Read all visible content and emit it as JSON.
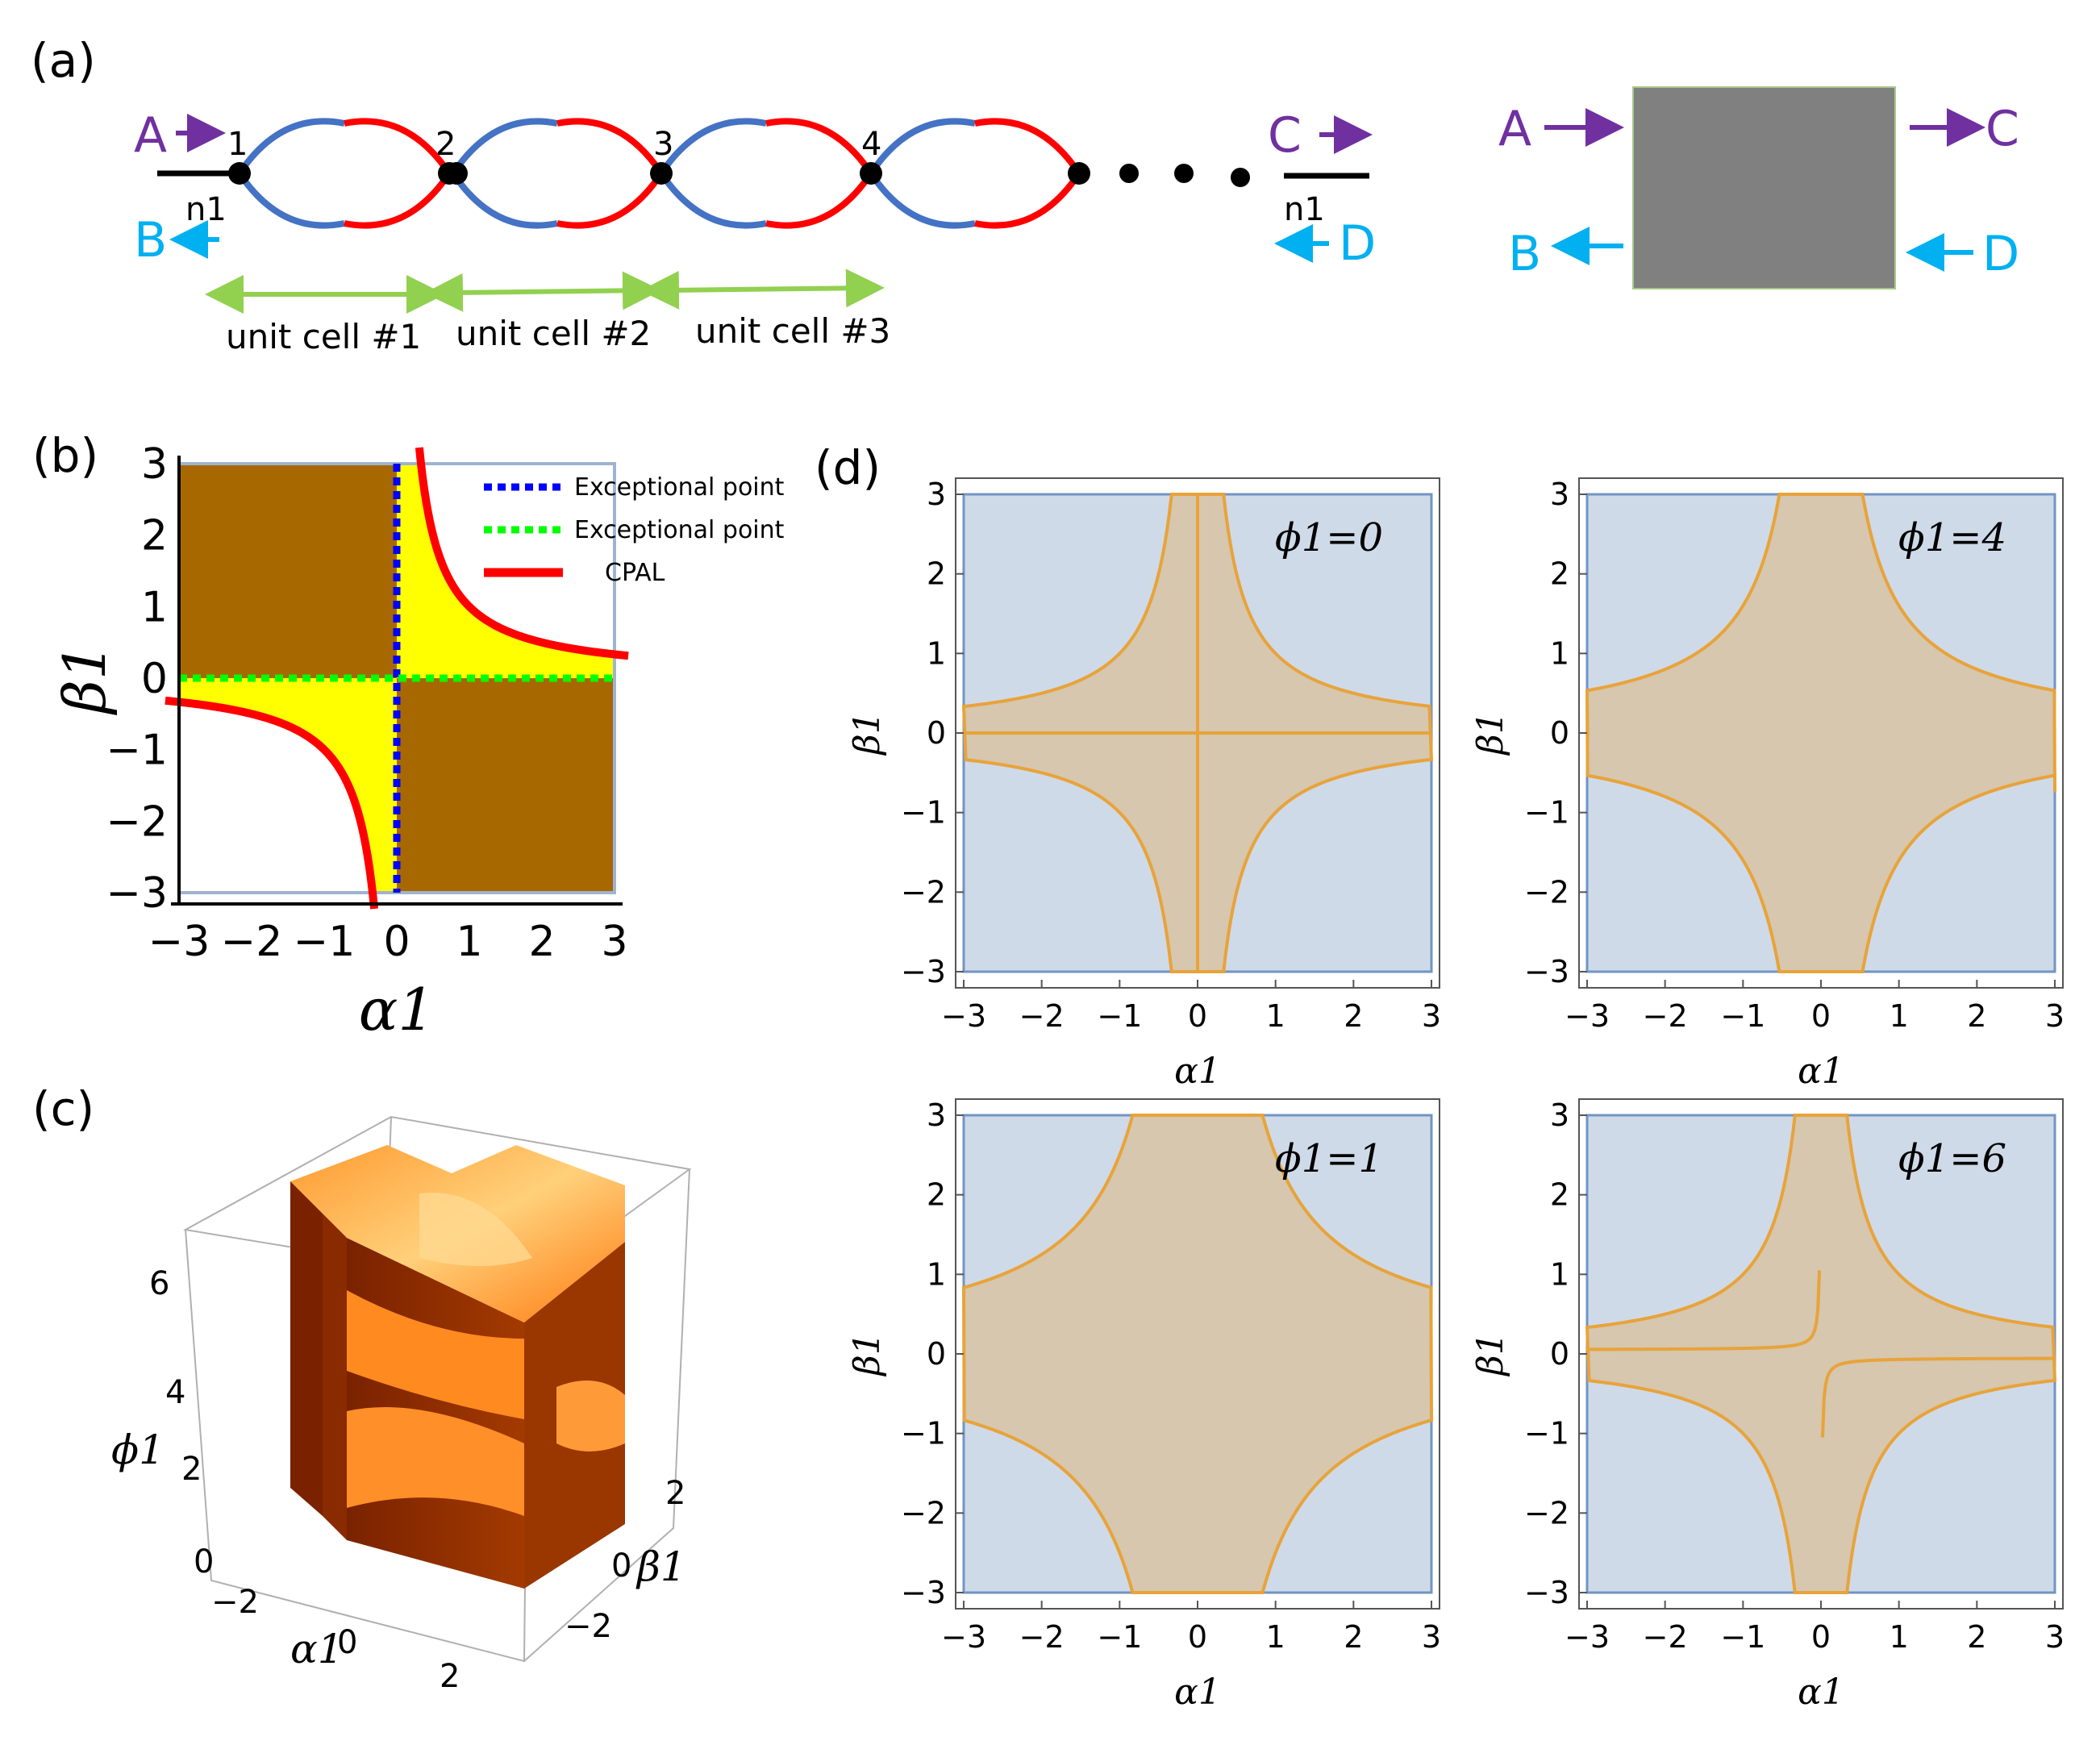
{
  "panel_labels": {
    "a": "(a)",
    "b": "(b)",
    "c": "(c)",
    "d": "(d)"
  },
  "panel_a": {
    "ports": {
      "A": "A",
      "B": "B",
      "C": "C",
      "D": "D"
    },
    "node_labels": [
      "1",
      "2",
      "3",
      "4"
    ],
    "lead_label": "n1",
    "unit_cells": [
      "unit cell #1",
      "unit cell #2",
      "unit cell #3"
    ],
    "colors": {
      "port_in": "#7030a0",
      "port_out": "#00b0f0",
      "arc_blue": "#4472c4",
      "arc_red": "#ff0000",
      "cell_arrow": "#92d050",
      "box": "#808080"
    }
  },
  "chart_data": [
    {
      "id": "b",
      "type": "area",
      "xlabel": "α1",
      "ylabel": "β1",
      "xlim": [
        -3,
        3
      ],
      "ylim": [
        -3,
        3
      ],
      "xticks": [
        "−3",
        "−2",
        "−1",
        "0",
        "1",
        "2",
        "3"
      ],
      "yticks": [
        "3",
        "2",
        "1",
        "0",
        "−1",
        "−2",
        "−3"
      ],
      "legend": {
        "placement": "right",
        "entries": [
          "Exceptional point",
          "Exceptional point",
          "CPAL"
        ]
      },
      "series": [
        {
          "name": "Exceptional point",
          "kind": "vertical line",
          "x": 0,
          "color": "#0000ff"
        },
        {
          "name": "Exceptional point",
          "kind": "horizontal line",
          "y": 0,
          "color": "#00ff00"
        },
        {
          "name": "CPAL",
          "kind": "curve",
          "equation": "α1·β1 = 1",
          "color": "#ff0000"
        }
      ],
      "regions": [
        {
          "area": "α1<0, β1>0 and α1>0, β1<0",
          "color": "#a86800"
        },
        {
          "area": "between axes and CPAL curve",
          "color": "#ffff00"
        }
      ]
    },
    {
      "id": "c",
      "type": "3d-surface",
      "xlabel": "α1",
      "ylabel": "β1",
      "zlabel": "ϕ1",
      "xticks": [
        "−2",
        "0",
        "2"
      ],
      "yticks": [
        "2",
        "0",
        "−2"
      ],
      "zticks": [
        "6",
        "4",
        "2",
        "0"
      ],
      "color": "#ff7a10"
    },
    {
      "id": "d",
      "type": "area",
      "xlabel": "α1",
      "ylabel": "β1",
      "xlim": [
        -3,
        3
      ],
      "ylim": [
        -3,
        3
      ],
      "xticks": [
        "−3",
        "−2",
        "−1",
        "0",
        "1",
        "2",
        "3"
      ],
      "yticks": [
        "3",
        "2",
        "1",
        "0",
        "−1",
        "−2",
        "−3"
      ],
      "colors": {
        "region_a": "#cfdae8",
        "region_b": "#d6c7ae",
        "boundary": "#e8a33a",
        "frame_blue": "#7294c4"
      },
      "subplots": [
        {
          "label": "ϕ1=0",
          "phi": 0
        },
        {
          "label": "ϕ1=4",
          "phi": 4
        },
        {
          "label": "ϕ1=1",
          "phi": 1
        },
        {
          "label": "ϕ1=6",
          "phi": 6
        }
      ]
    }
  ]
}
